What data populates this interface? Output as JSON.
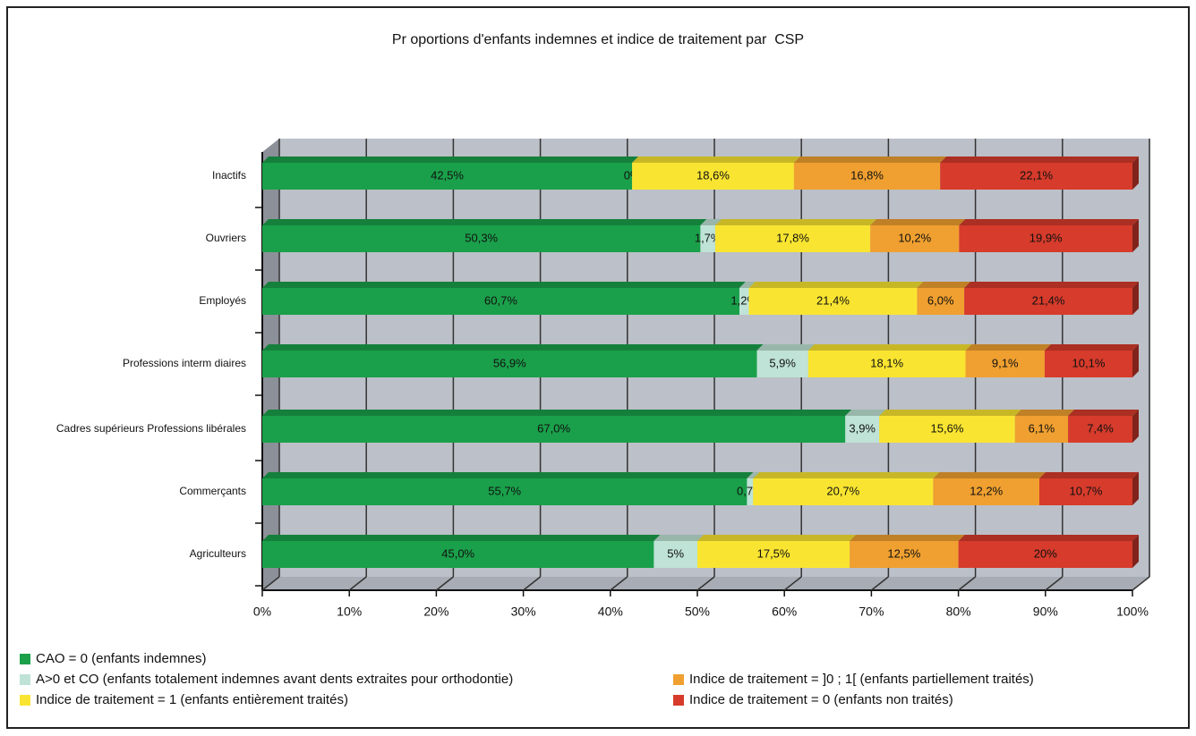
{
  "chart_data": {
    "type": "bar",
    "orientation": "horizontal",
    "stacking": "percent",
    "title": "Pr oportions d'enfants indemnes et indice de traitement par  CSP",
    "categories": [
      "Inactifs",
      "Ouvriers",
      "Employés",
      "Professions interm diaires",
      "Cadres supérieurs Professions libérales",
      "Commerçants",
      "Agriculteurs"
    ],
    "series": [
      {
        "name": "CAO = 0 (enfants indemnes)",
        "color": "#1aa04a",
        "values": [
          42.5,
          50.3,
          60.7,
          56.9,
          67.0,
          55.7,
          45.0
        ],
        "value_labels": [
          "42,5%",
          "50,3%",
          "60,7%",
          "56,9%",
          "67,0%",
          "55,7%",
          "45,0%"
        ]
      },
      {
        "name": "A>0 et CO (enfants totalement indemnes avant dents extraites pour orthodontie)",
        "color": "#bfe3d6",
        "values": [
          0,
          1.7,
          1.2,
          5.9,
          3.9,
          0.7,
          5
        ],
        "value_labels": [
          "0%",
          "1,7%",
          "1,2%",
          "5,9%",
          "3,9%",
          "0,7%",
          "5%"
        ]
      },
      {
        "name": "Indice de traitement = 1 (enfants entièrement traités)",
        "color": "#f9e531",
        "values": [
          18.6,
          17.8,
          21.4,
          18.1,
          15.6,
          20.7,
          17.5
        ],
        "value_labels": [
          "18,6%",
          "17,8%",
          "21,4%",
          "18,1%",
          "15,6%",
          "20,7%",
          "17,5%"
        ]
      },
      {
        "name": "Indice de traitement = ]0 ; 1[ (enfants partiellement traités)",
        "color": "#f0a030",
        "values": [
          16.8,
          10.2,
          6.0,
          9.1,
          6.1,
          12.2,
          12.5
        ],
        "value_labels": [
          "16,8%",
          "10,2%",
          "6,0%",
          "9,1%",
          "6,1%",
          "12,2%",
          "12,5%"
        ]
      },
      {
        "name": "Indice de traitement = 0 (enfants non traités)",
        "color": "#d63b2b",
        "values": [
          22.1,
          19.9,
          21.4,
          10.1,
          7.4,
          10.7,
          20
        ],
        "value_labels": [
          "22,1%",
          "19,9%",
          "21,4%",
          "10,1%",
          "7,4%",
          "10,7%",
          "20%"
        ]
      }
    ],
    "xlim": [
      0,
      100
    ],
    "xticks": [
      {
        "value": 0,
        "label": "0%"
      },
      {
        "value": 10,
        "label": "10%"
      },
      {
        "value": 20,
        "label": "20%"
      },
      {
        "value": 30,
        "label": "30%"
      },
      {
        "value": 40,
        "label": "40%"
      },
      {
        "value": 50,
        "label": "50%"
      },
      {
        "value": 60,
        "label": "60%"
      },
      {
        "value": 70,
        "label": "70%"
      },
      {
        "value": 80,
        "label": "80%"
      },
      {
        "value": 90,
        "label": "90%"
      },
      {
        "value": 100,
        "label": "100%"
      }
    ],
    "grid": true
  }
}
